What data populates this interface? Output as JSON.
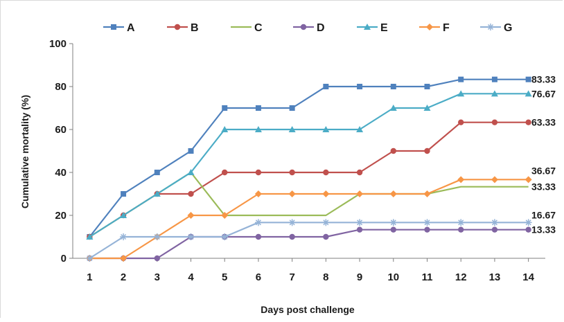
{
  "chart_data": {
    "type": "line",
    "title": "",
    "xlabel": "Days post challenge",
    "ylabel": "Cumulative mortality (%)",
    "x": [
      1,
      2,
      3,
      4,
      5,
      6,
      7,
      8,
      9,
      10,
      11,
      12,
      13,
      14
    ],
    "ylim": [
      0,
      100
    ],
    "yticks": [
      0,
      20,
      40,
      60,
      80,
      100
    ],
    "grid": false,
    "legend_position": "top",
    "series": [
      {
        "name": "A",
        "color": "#4f81bd",
        "marker": "square",
        "values": [
          10,
          30,
          40,
          50,
          70,
          70,
          70,
          80,
          80,
          80,
          80,
          83.33,
          83.33,
          83.33
        ]
      },
      {
        "name": "B",
        "color": "#c0504d",
        "marker": "circle",
        "values": [
          10,
          20,
          30,
          30,
          40,
          40,
          40,
          40,
          40,
          50,
          50,
          63.33,
          63.33,
          63.33
        ]
      },
      {
        "name": "C",
        "color": "#9bbb59",
        "marker": "none",
        "values": [
          10,
          20,
          30,
          40,
          20,
          20,
          20,
          20,
          30,
          30,
          30,
          33.33,
          33.33,
          33.33
        ]
      },
      {
        "name": "D",
        "color": "#8064a2",
        "marker": "circle",
        "values": [
          0,
          0,
          0,
          10,
          10,
          10,
          10,
          10,
          13.33,
          13.33,
          13.33,
          13.33,
          13.33,
          13.33
        ]
      },
      {
        "name": "E",
        "color": "#4bacc6",
        "marker": "triangle",
        "values": [
          10,
          20,
          30,
          40,
          60,
          60,
          60,
          60,
          60,
          70,
          70,
          76.67,
          76.67,
          76.67
        ]
      },
      {
        "name": "F",
        "color": "#f79646",
        "marker": "diamond",
        "values": [
          0,
          0,
          10,
          20,
          20,
          30,
          30,
          30,
          30,
          30,
          30,
          36.67,
          36.67,
          36.67
        ]
      },
      {
        "name": "G",
        "color": "#95b3d7",
        "marker": "star",
        "values": [
          0,
          10,
          10,
          10,
          10,
          16.67,
          16.67,
          16.67,
          16.67,
          16.67,
          16.67,
          16.67,
          16.67,
          16.67
        ]
      }
    ],
    "end_labels": [
      "83.33",
      "76.67",
      "63.33",
      "36.67",
      "33.33",
      "16.67",
      "13.33"
    ]
  }
}
